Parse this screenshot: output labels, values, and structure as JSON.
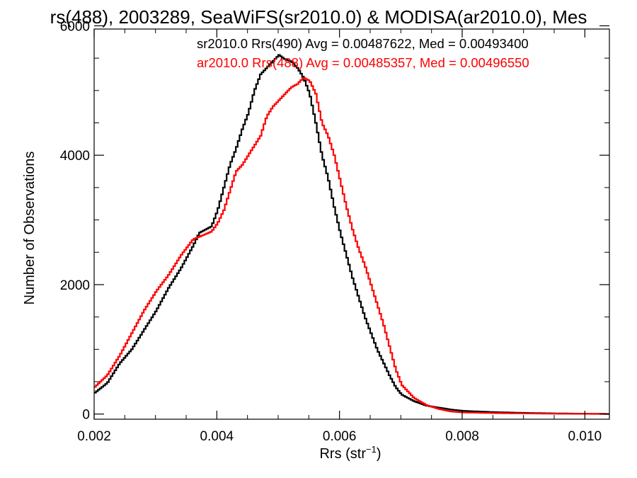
{
  "chart_data": {
    "type": "line",
    "title": "rs(488), 2003289, SeaWiFS(sr2010.0) & MODISA(ar2010.0), Mes",
    "xlabel": "Rrs (str",
    "xlabel_sup": "−1",
    "xlabel_close": ")",
    "ylabel": "Number of Observations",
    "xlim": [
      0.002,
      0.0104
    ],
    "ylim": [
      -80,
      5950
    ],
    "x_ticks": [
      0.002,
      0.004,
      0.006,
      0.008,
      0.01
    ],
    "x_tick_labels": [
      "0.002",
      "0.004",
      "0.006",
      "0.008",
      "0.010"
    ],
    "y_ticks": [
      0,
      2000,
      4000,
      6000
    ],
    "y_tick_labels": [
      "0",
      "2000",
      "4000",
      "6000"
    ],
    "grid": false,
    "legend_position": "top-right",
    "series": [
      {
        "name": "sr2010.0 Rrs(490) Avg = 0.00487622, Med = 0.00493400",
        "color": "#000000",
        "points": [
          [
            0.002,
            330
          ],
          [
            0.0022,
            480
          ],
          [
            0.0024,
            780
          ],
          [
            0.0026,
            1000
          ],
          [
            0.0028,
            1300
          ],
          [
            0.003,
            1600
          ],
          [
            0.0032,
            1950
          ],
          [
            0.0034,
            2250
          ],
          [
            0.0036,
            2600
          ],
          [
            0.0037,
            2800
          ],
          [
            0.0038,
            2850
          ],
          [
            0.0039,
            2900
          ],
          [
            0.004,
            3150
          ],
          [
            0.0041,
            3500
          ],
          [
            0.0042,
            3850
          ],
          [
            0.0043,
            4100
          ],
          [
            0.0044,
            4400
          ],
          [
            0.0045,
            4650
          ],
          [
            0.0046,
            5000
          ],
          [
            0.0047,
            5250
          ],
          [
            0.0048,
            5350
          ],
          [
            0.0049,
            5450
          ],
          [
            0.005,
            5550
          ],
          [
            0.0051,
            5480
          ],
          [
            0.0052,
            5450
          ],
          [
            0.0053,
            5350
          ],
          [
            0.0054,
            5200
          ],
          [
            0.0055,
            4950
          ],
          [
            0.0056,
            4500
          ],
          [
            0.0057,
            4000
          ],
          [
            0.0058,
            3650
          ],
          [
            0.0059,
            3200
          ],
          [
            0.006,
            2800
          ],
          [
            0.0061,
            2450
          ],
          [
            0.0062,
            2100
          ],
          [
            0.0063,
            1800
          ],
          [
            0.0064,
            1500
          ],
          [
            0.0065,
            1250
          ],
          [
            0.0066,
            1000
          ],
          [
            0.0067,
            800
          ],
          [
            0.0068,
            600
          ],
          [
            0.0069,
            420
          ],
          [
            0.007,
            300
          ],
          [
            0.0072,
            200
          ],
          [
            0.0074,
            130
          ],
          [
            0.0076,
            100
          ],
          [
            0.0078,
            70
          ],
          [
            0.008,
            50
          ],
          [
            0.0085,
            30
          ],
          [
            0.009,
            18
          ],
          [
            0.0095,
            10
          ],
          [
            0.01,
            5
          ],
          [
            0.0104,
            2
          ]
        ]
      },
      {
        "name": "ar2010.0 Rrs(488) Avg = 0.00485357, Med = 0.00496550",
        "color": "#ff0000",
        "points": [
          [
            0.002,
            420
          ],
          [
            0.0022,
            600
          ],
          [
            0.0024,
            900
          ],
          [
            0.0026,
            1250
          ],
          [
            0.0028,
            1600
          ],
          [
            0.003,
            1900
          ],
          [
            0.0032,
            2150
          ],
          [
            0.0034,
            2450
          ],
          [
            0.0036,
            2700
          ],
          [
            0.0038,
            2780
          ],
          [
            0.0039,
            2820
          ],
          [
            0.004,
            2950
          ],
          [
            0.0041,
            3150
          ],
          [
            0.0042,
            3450
          ],
          [
            0.0043,
            3750
          ],
          [
            0.0044,
            3850
          ],
          [
            0.0045,
            4000
          ],
          [
            0.0046,
            4150
          ],
          [
            0.0047,
            4300
          ],
          [
            0.0048,
            4600
          ],
          [
            0.0049,
            4750
          ],
          [
            0.005,
            4850
          ],
          [
            0.0051,
            4950
          ],
          [
            0.0052,
            5050
          ],
          [
            0.0053,
            5100
          ],
          [
            0.0054,
            5200
          ],
          [
            0.0055,
            5150
          ],
          [
            0.0056,
            4950
          ],
          [
            0.0057,
            4500
          ],
          [
            0.0058,
            4300
          ],
          [
            0.0059,
            4000
          ],
          [
            0.006,
            3600
          ],
          [
            0.0061,
            3200
          ],
          [
            0.0062,
            2850
          ],
          [
            0.0063,
            2550
          ],
          [
            0.0064,
            2300
          ],
          [
            0.0065,
            2000
          ],
          [
            0.0066,
            1700
          ],
          [
            0.0067,
            1400
          ],
          [
            0.0068,
            1050
          ],
          [
            0.0069,
            700
          ],
          [
            0.007,
            450
          ],
          [
            0.0072,
            250
          ],
          [
            0.0074,
            140
          ],
          [
            0.0076,
            80
          ],
          [
            0.0078,
            40
          ],
          [
            0.008,
            25
          ],
          [
            0.0085,
            15
          ],
          [
            0.009,
            10
          ],
          [
            0.0095,
            5
          ],
          [
            0.01,
            3
          ],
          [
            0.0104,
            1
          ]
        ]
      }
    ]
  }
}
